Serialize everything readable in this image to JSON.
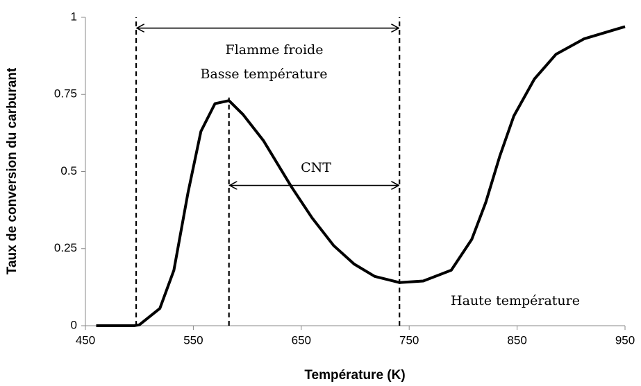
{
  "chart_data": {
    "type": "line",
    "x_label": "Température (K)",
    "y_label": "Taux de conversion du carburant",
    "xlim": [
      450,
      950
    ],
    "xticks": [
      450,
      550,
      650,
      750,
      850,
      950
    ],
    "ylim": [
      0,
      1
    ],
    "yticks": [
      0,
      0.25,
      0.5,
      0.75,
      1
    ],
    "grid": false,
    "series": [
      {
        "color": "#000000",
        "x": [
          460,
          495,
          500,
          519,
          532,
          545,
          557,
          570,
          583,
          596,
          615,
          641,
          660,
          680,
          699,
          718,
          741,
          763,
          789,
          808,
          821,
          834,
          847,
          866,
          886,
          912,
          950
        ],
        "values": [
          0,
          0,
          0.003,
          0.056,
          0.18,
          0.43,
          0.63,
          0.72,
          0.73,
          0.685,
          0.6,
          0.45,
          0.35,
          0.26,
          0.2,
          0.16,
          0.14,
          0.145,
          0.18,
          0.28,
          0.4,
          0.55,
          0.68,
          0.8,
          0.88,
          0.93,
          0.97
        ]
      }
    ],
    "reference_lines": [
      {
        "x": 497,
        "y_top": 1
      },
      {
        "x": 583,
        "y_top": 0.74
      },
      {
        "x": 741,
        "y_top": 1
      }
    ],
    "arrows": [
      {
        "x_start": 497,
        "x_end": 741,
        "y": 0.965
      },
      {
        "x_start": 583,
        "x_end": 741,
        "y": 0.455
      }
    ],
    "annotations": [
      "Flamme froide",
      "Basse température",
      "CNT",
      "Haute température"
    ]
  }
}
